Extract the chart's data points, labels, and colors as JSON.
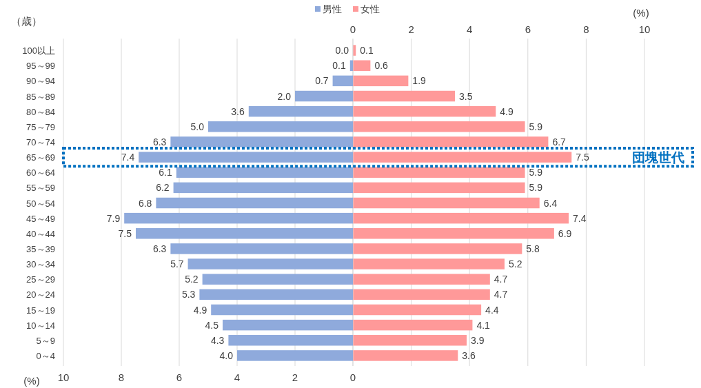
{
  "chart_data": [
    {
      "type": "bar",
      "orientation": "horizontal",
      "ylabel": "（歳）",
      "xlabel": "(%)",
      "categories": [
        "100以上",
        "95～99",
        "90～94",
        "85～89",
        "80～84",
        "75～79",
        "70～74",
        "65～69",
        "60～64",
        "55～59",
        "50～54",
        "45～49",
        "40～44",
        "35～39",
        "30～34",
        "25～29",
        "20～24",
        "15～19",
        "10～14",
        "5～9",
        "0～4"
      ],
      "series": [
        {
          "name": "男性",
          "color": "#8faadc",
          "values": [
            0.0,
            0.1,
            0.7,
            2.0,
            3.6,
            5.0,
            6.3,
            7.4,
            6.1,
            6.2,
            6.8,
            7.9,
            7.5,
            6.3,
            5.7,
            5.2,
            5.3,
            4.9,
            4.5,
            4.3,
            4.0
          ],
          "value_labels": [
            "0.0",
            "0.1",
            "0.7",
            "2.0",
            "3.6",
            "5.0",
            "6.3",
            "7.4",
            "6.1",
            "6.2",
            "6.8",
            "7.9",
            "7.5",
            "6.3",
            "5.7",
            "5.2",
            "5.3",
            "4.9",
            "4.5",
            "4.3",
            "4.0"
          ]
        }
      ],
      "xlim": [
        10,
        0
      ],
      "xticks": [
        10,
        8,
        6,
        4,
        2,
        0
      ],
      "grid": "x",
      "legend": "top"
    },
    {
      "type": "bar",
      "orientation": "horizontal",
      "x2label": "(%)",
      "categories": [
        null,
        null,
        null,
        null,
        null,
        null,
        null,
        null,
        null,
        null,
        null,
        null,
        null,
        null,
        null,
        null,
        null,
        null,
        null,
        null,
        null
      ],
      "series": [
        {
          "name": "女性",
          "color": "#ff9999",
          "axis": "x2",
          "values": [
            0.1,
            0.6,
            1.9,
            3.5,
            4.9,
            5.9,
            6.7,
            7.5,
            5.9,
            5.9,
            6.4,
            7.4,
            6.9,
            5.8,
            5.2,
            4.7,
            4.7,
            4.4,
            4.1,
            3.9,
            3.6
          ]
        }
      ],
      "x2lim": [
        0,
        10
      ],
      "x2ticks": [
        0,
        2,
        4,
        6,
        8,
        10
      ],
      "grid": "x",
      "legend": "top",
      "data_labels": true,
      "tick_labels": "x",
      "annotations": [
        "団塊世代"
      ]
    }
  ]
}
